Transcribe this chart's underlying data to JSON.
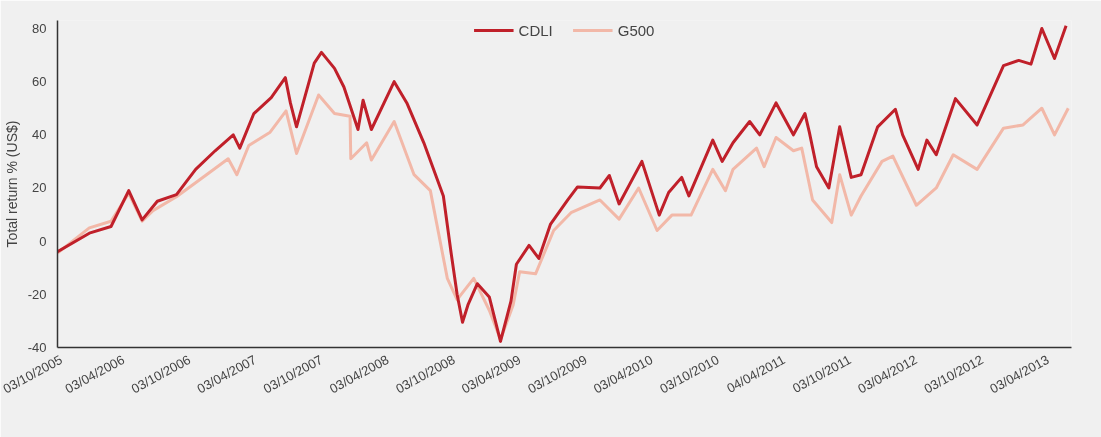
{
  "chart_data": {
    "type": "line",
    "ylabel": "Total return % (US$)",
    "legend": "top",
    "grid": false,
    "line_style": "solid",
    "marker": "none",
    "xlim": [
      "2005-10-03",
      "2013-06-07"
    ],
    "ylim": [
      -40,
      83
    ],
    "yticks": [
      -40,
      -20,
      0,
      20,
      40,
      60,
      80
    ],
    "xticks": [
      {
        "value": "2005-10-03",
        "label": "03/10/2005"
      },
      {
        "value": "2006-04-03",
        "label": "03/04/2006"
      },
      {
        "value": "2006-10-03",
        "label": "03/10/2006"
      },
      {
        "value": "2007-04-03",
        "label": "03/04/2007"
      },
      {
        "value": "2007-10-03",
        "label": "03/10/2007"
      },
      {
        "value": "2008-04-03",
        "label": "03/04/2008"
      },
      {
        "value": "2008-10-03",
        "label": "03/10/2008"
      },
      {
        "value": "2009-04-03",
        "label": "03/04/2009"
      },
      {
        "value": "2009-10-03",
        "label": "03/10/2009"
      },
      {
        "value": "2010-04-03",
        "label": "03/04/2010"
      },
      {
        "value": "2010-10-03",
        "label": "03/10/2010"
      },
      {
        "value": "2011-04-04",
        "label": "04/04/2011"
      },
      {
        "value": "2011-10-03",
        "label": "03/10/2011"
      },
      {
        "value": "2012-04-03",
        "label": "03/04/2012"
      },
      {
        "value": "2012-10-03",
        "label": "03/10/2012"
      },
      {
        "value": "2013-04-03",
        "label": "03/04/2013"
      }
    ],
    "series": [
      {
        "name": "G500",
        "color": "#f2b8a8",
        "x": [
          "2005-10-03",
          "2005-12-30",
          "2006-02-28",
          "2006-04-18",
          "2006-05-25",
          "2006-06-24",
          "2006-08-28",
          "2006-11-19",
          "2007-01-18",
          "2007-02-11",
          "2007-03-16",
          "2007-05-14",
          "2007-06-27",
          "2007-07-26",
          "2007-09-25",
          "2007-11-08",
          "2007-12-21",
          "2007-12-23",
          "2008-02-05",
          "2008-02-18",
          "2008-04-21",
          "2008-06-15",
          "2008-07-30",
          "2008-09-15",
          "2008-10-12",
          "2008-11-27",
          "2009-01-09",
          "2009-02-09",
          "2009-03-16",
          "2009-04-03",
          "2009-05-17",
          "2009-07-06",
          "2009-08-23",
          "2009-11-11",
          "2010-01-03",
          "2010-02-26",
          "2010-04-18",
          "2010-05-29",
          "2010-07-21",
          "2010-09-19",
          "2010-10-24",
          "2010-11-14",
          "2011-01-18",
          "2011-02-08",
          "2011-03-13",
          "2011-04-30",
          "2011-05-23",
          "2011-06-22",
          "2011-08-14",
          "2011-09-05",
          "2011-10-07",
          "2011-11-03",
          "2011-12-31",
          "2012-01-30",
          "2012-04-04",
          "2012-05-29",
          "2012-07-15",
          "2012-09-19",
          "2012-12-01",
          "2013-01-24",
          "2013-03-17",
          "2013-04-21",
          "2013-05-29"
        ],
        "values": [
          -4.5,
          5,
          7.5,
          18,
          7.5,
          11.5,
          16.7,
          25,
          31,
          25,
          36,
          41,
          49,
          33,
          55,
          48,
          47,
          31,
          37,
          30.5,
          45,
          25,
          19,
          -14,
          -22,
          -14,
          -26,
          -37,
          -24,
          -11.5,
          -12.3,
          4,
          10.7,
          15.5,
          8.3,
          20,
          4,
          9.8,
          9.8,
          27,
          19,
          27,
          35,
          28,
          39,
          34,
          35,
          15.5,
          7,
          25,
          9.8,
          17,
          30,
          32,
          13.5,
          20,
          32.5,
          27,
          42.5,
          43.7,
          50,
          40,
          50
        ]
      },
      {
        "name": "CDLI",
        "color": "#c0202a",
        "x": [
          "2005-10-03",
          "2005-12-30",
          "2006-02-28",
          "2006-04-18",
          "2006-05-25",
          "2006-07-06",
          "2006-08-28",
          "2006-10-20",
          "2006-12-13",
          "2007-02-01",
          "2007-02-19",
          "2007-03-30",
          "2007-05-17",
          "2007-06-25",
          "2007-07-09",
          "2007-07-26",
          "2007-09-13",
          "2007-10-03",
          "2007-11-08",
          "2007-12-04",
          "2008-01-12",
          "2008-01-26",
          "2008-02-18",
          "2008-04-21",
          "2008-05-26",
          "2008-07-12",
          "2008-09-04",
          "2008-09-25",
          "2008-10-12",
          "2008-10-27",
          "2008-11-11",
          "2008-12-07",
          "2009-01-09",
          "2009-02-09",
          "2009-03-10",
          "2009-03-25",
          "2009-04-29",
          "2009-05-26",
          "2009-06-27",
          "2009-08-14",
          "2009-09-10",
          "2009-11-11",
          "2009-12-07",
          "2010-01-03",
          "2010-03-07",
          "2010-04-24",
          "2010-05-20",
          "2010-06-25",
          "2010-07-15",
          "2010-09-19",
          "2010-10-15",
          "2010-11-14",
          "2010-12-30",
          "2011-01-27",
          "2011-03-13",
          "2011-04-30",
          "2011-06-01",
          "2011-06-13",
          "2011-07-03",
          "2011-08-06",
          "2011-09-05",
          "2011-10-07",
          "2011-11-03",
          "2011-12-19",
          "2012-02-06",
          "2012-02-26",
          "2012-04-09",
          "2012-05-03",
          "2012-05-29",
          "2012-07-21",
          "2012-09-19",
          "2012-12-01",
          "2013-01-12",
          "2013-02-15",
          "2013-03-17",
          "2013-04-21",
          "2013-05-23"
        ],
        "values": [
          -4,
          3,
          5.5,
          19,
          8,
          15,
          17.5,
          27,
          34,
          40,
          35,
          48,
          54,
          61.5,
          52,
          43,
          67,
          71,
          65,
          58,
          42,
          53,
          42,
          60,
          52,
          37,
          17,
          -4,
          -20,
          -30.5,
          -24,
          -16,
          -21,
          -37.7,
          -22.6,
          -8.7,
          -1.6,
          -6.5,
          6.3,
          15.5,
          20.4,
          20,
          24.7,
          14,
          30,
          9.8,
          18.3,
          24,
          17,
          38,
          30,
          37,
          45,
          40,
          52,
          40,
          48,
          41,
          28,
          20,
          43,
          24,
          25,
          43,
          49.6,
          40,
          27,
          38,
          32.5,
          53.6,
          43.7,
          66,
          68,
          66.6,
          80,
          68.7,
          81
        ]
      }
    ]
  }
}
